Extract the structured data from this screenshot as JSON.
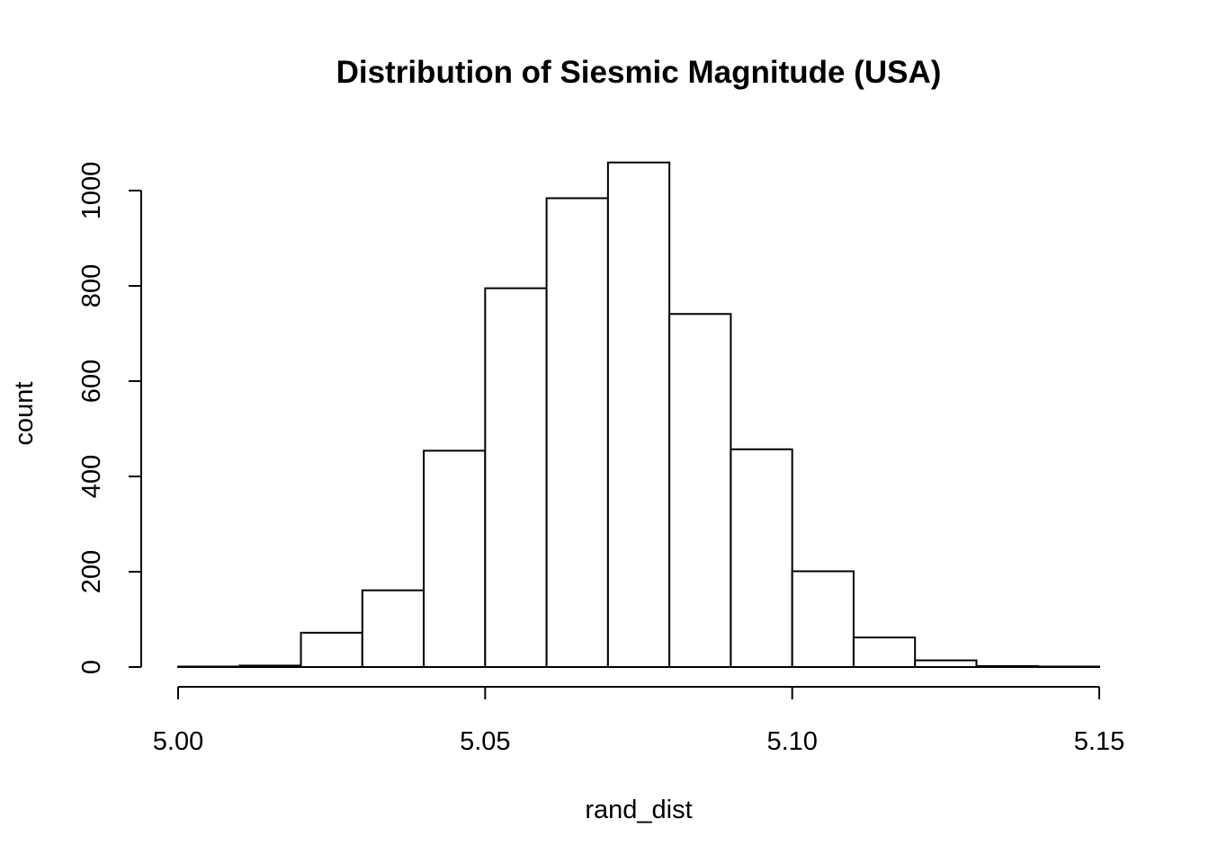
{
  "chart_data": {
    "type": "bar",
    "title": "Distribution of Siesmic Magnitude (USA)",
    "xlabel": "rand_dist",
    "ylabel": "count",
    "xlim": [
      5.0,
      5.15
    ],
    "ylim": [
      0,
      1060
    ],
    "x_ticks": [
      "5.00",
      "5.05",
      "5.10",
      "5.15"
    ],
    "y_ticks": [
      "0",
      "200",
      "400",
      "600",
      "800",
      "1000"
    ],
    "bin_edges": [
      5.0,
      5.01,
      5.02,
      5.03,
      5.04,
      5.05,
      5.06,
      5.07,
      5.08,
      5.09,
      5.1,
      5.11,
      5.12,
      5.13,
      5.14,
      5.15
    ],
    "values": [
      1,
      3,
      72,
      161,
      454,
      795,
      984,
      1059,
      741,
      457,
      201,
      62,
      14,
      2,
      1
    ],
    "grid": false
  }
}
